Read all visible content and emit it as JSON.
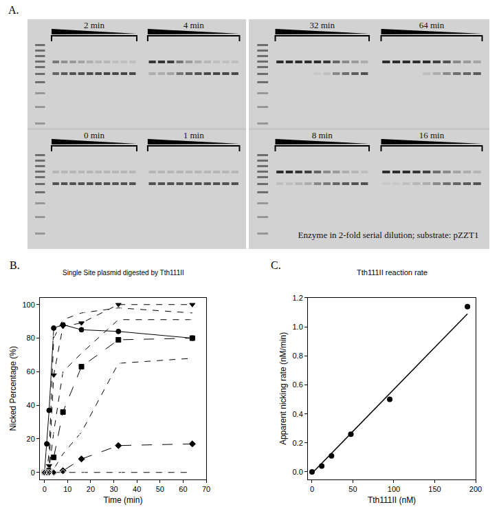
{
  "gel": {
    "label": "A.",
    "caption": "Enzyme in 2-fold serial dilution; substrate: pZZT1",
    "panels": [
      {
        "title": "2 min",
        "nicked": [
          0.5,
          0.35,
          0.3,
          0.25,
          0.2,
          0.15,
          0.15,
          0.1,
          0.1,
          0.1
        ],
        "supercoiled": [
          0.6,
          0.65,
          0.7,
          0.7,
          0.72,
          0.75,
          0.75,
          0.75,
          0.75,
          0.75
        ]
      },
      {
        "title": "4 min",
        "nicked": [
          0.85,
          0.85,
          0.8,
          0.5,
          0.3,
          0.2,
          0.15,
          0.1,
          0.1,
          0.1
        ],
        "supercoiled": [
          0.2,
          0.2,
          0.25,
          0.5,
          0.65,
          0.7,
          0.75,
          0.75,
          0.75,
          0.75
        ]
      },
      {
        "title": "32 min",
        "nicked": [
          0.9,
          0.9,
          0.9,
          0.9,
          0.9,
          0.85,
          0.6,
          0.4,
          0.3,
          0.2
        ],
        "supercoiled": [
          0.0,
          0.0,
          0.0,
          0.0,
          0.05,
          0.1,
          0.4,
          0.55,
          0.65,
          0.7
        ]
      },
      {
        "title": "64 min",
        "nicked": [
          0.9,
          0.9,
          0.9,
          0.9,
          0.9,
          0.8,
          0.7,
          0.4,
          0.3,
          0.25
        ],
        "supercoiled": [
          0.0,
          0.0,
          0.0,
          0.0,
          0.1,
          0.2,
          0.4,
          0.55,
          0.6,
          0.65
        ]
      },
      {
        "title": "0 min",
        "nicked": [
          0.15,
          0.15,
          0.15,
          0.15,
          0.15,
          0.15,
          0.15,
          0.15,
          0.15,
          0.15
        ],
        "supercoiled": [
          0.7,
          0.7,
          0.7,
          0.7,
          0.7,
          0.7,
          0.7,
          0.7,
          0.7,
          0.7
        ]
      },
      {
        "title": "1 min",
        "nicked": [
          0.15,
          0.15,
          0.15,
          0.15,
          0.15,
          0.15,
          0.15,
          0.15,
          0.15,
          0.15
        ],
        "supercoiled": [
          0.7,
          0.7,
          0.7,
          0.7,
          0.7,
          0.7,
          0.7,
          0.7,
          0.7,
          0.7
        ]
      },
      {
        "title": "8 min",
        "nicked": [
          0.9,
          0.9,
          0.85,
          0.8,
          0.6,
          0.4,
          0.3,
          0.2,
          0.15,
          0.1
        ],
        "supercoiled": [
          0.1,
          0.1,
          0.15,
          0.2,
          0.4,
          0.5,
          0.6,
          0.65,
          0.7,
          0.7
        ]
      },
      {
        "title": "16 min",
        "nicked": [
          0.9,
          0.9,
          0.9,
          0.85,
          0.8,
          0.55,
          0.4,
          0.25,
          0.2,
          0.15
        ],
        "supercoiled": [
          0.05,
          0.05,
          0.1,
          0.15,
          0.2,
          0.4,
          0.55,
          0.6,
          0.65,
          0.7
        ]
      }
    ]
  },
  "chart_data": [
    {
      "type": "line",
      "annotations": [
        "B."
      ],
      "title": "Single Site plasmid digested by Tth111II",
      "x_label": "Time (min)",
      "y_label": "Nicked Percentage (%)",
      "x": [
        0,
        1,
        2,
        4,
        8,
        16,
        32,
        64
      ],
      "series": [
        {
          "color": "#000000",
          "marker": "circle",
          "line_style": "solid",
          "values": [
            0,
            17,
            37,
            86,
            88,
            85,
            84,
            80
          ]
        },
        {
          "color": "#000000",
          "marker": "circle-open",
          "line_style": "dash",
          "values": [
            0,
            1,
            12,
            80,
            91,
            95,
            98,
            95
          ]
        },
        {
          "color": "#000000",
          "marker": "triangle-down",
          "line_style": "dash",
          "values": [
            0,
            0,
            4,
            58,
            87,
            89,
            100,
            100
          ]
        },
        {
          "color": "#000000",
          "marker": "triangle-down-open",
          "line_style": "dash",
          "values": [
            0,
            0,
            2,
            24,
            60,
            71,
            91,
            91
          ]
        },
        {
          "color": "#000000",
          "marker": "square",
          "line_style": "longdash",
          "values": [
            0,
            0,
            1,
            9,
            36,
            63,
            79,
            80
          ]
        },
        {
          "color": "#000000",
          "marker": "square-open",
          "line_style": "dash",
          "values": [
            0,
            0,
            0,
            2,
            11,
            24,
            65,
            68
          ]
        },
        {
          "color": "#000000",
          "marker": "diamond",
          "line_style": "longdash",
          "values": [
            0,
            0,
            0,
            0,
            1,
            8,
            16,
            17
          ]
        },
        {
          "color": "#000000",
          "marker": "diamond-open",
          "line_style": "dash",
          "values": [
            0,
            0,
            0,
            0,
            0,
            0,
            0,
            0
          ]
        }
      ],
      "xlim": [
        -2,
        70
      ],
      "ylim": [
        -4,
        104
      ],
      "xticks": [
        0,
        10,
        20,
        30,
        40,
        50,
        60,
        70
      ],
      "yticks": [
        0,
        20,
        40,
        60,
        80,
        100
      ],
      "grid": false
    },
    {
      "type": "scatter",
      "annotations": [
        "C."
      ],
      "title": "Tth111II reaction rate",
      "x_label": "Tth111II (nM)",
      "y_label": "Apparent nicking rate (nM/min)",
      "series": [
        {
          "type": "scatter",
          "color": "#000000",
          "marker": "circle",
          "x": [
            0,
            11.9,
            23.8,
            47.5,
            95,
            190
          ],
          "values": [
            0,
            0.04,
            0.11,
            0.26,
            0.5,
            1.14
          ]
        },
        {
          "type": "line",
          "color": "#000000",
          "line_style": "solid",
          "x": [
            0,
            190
          ],
          "values": [
            -0.01,
            1.09
          ]
        }
      ],
      "xlim": [
        -5,
        200
      ],
      "ylim": [
        -0.05,
        1.2
      ],
      "xticks": [
        0,
        50,
        100,
        150,
        200
      ],
      "yticks": [
        {
          "value": 0,
          "label": "0.0"
        },
        0.2,
        0.4,
        0.6,
        0.8,
        {
          "value": 1,
          "label": "1.0"
        },
        1.2
      ],
      "grid": false
    }
  ]
}
